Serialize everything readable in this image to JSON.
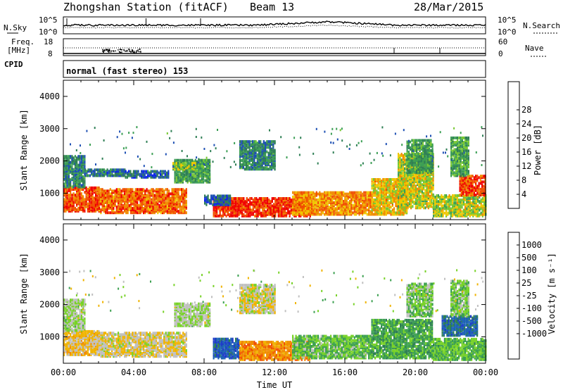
{
  "header": {
    "station": "Zhongshan Station (fitACF)",
    "beam": "Beam 13",
    "date": "28/Mar/2015"
  },
  "top_panels": {
    "nsky_label": "N.Sky",
    "nsky_ticks": [
      "10^5",
      "10^0"
    ],
    "nsearch_label": "N.Search",
    "nsearch_ticks": [
      "10^5",
      "10^0"
    ],
    "freq_label_line1": "Freq.",
    "freq_label_line2": "[MHz]",
    "freq_ticks": [
      "18",
      "8"
    ],
    "nave_label": "Nave",
    "nave_ticks": [
      "60",
      "0"
    ],
    "cpid_label": "CPID",
    "cpid_text": "normal (fast stereo) 153"
  },
  "colors": {
    "power": [
      "#0a1ef0",
      "#1e50b4",
      "#2f7f55",
      "#3c9f55",
      "#78c832",
      "#f0c800",
      "#f08c00",
      "#f05000",
      "#f00000"
    ],
    "velocity": [
      "#1e3cc8",
      "#1e64b4",
      "#2e7f55",
      "#3ca050",
      "#78d228",
      "#c0c0c0",
      "#f0b400",
      "#f08c00",
      "#f05000",
      "#f00000"
    ]
  },
  "chart_data": [
    {
      "type": "heatmap",
      "name": "power",
      "ylabel": "Slant Range [km]",
      "ylim": [
        180,
        4500
      ],
      "yticks": [
        "1000",
        "2000",
        "3000",
        "4000"
      ],
      "xlim": [
        "00:00",
        "24:00"
      ],
      "colorbar_label": "Power [dB]",
      "colorbar_ticks": [
        "4",
        "8",
        "12",
        "16",
        "20",
        "24",
        "28"
      ],
      "colorbar_range": [
        0,
        30
      ],
      "regions": [
        {
          "t0": 0.0,
          "t1": 2.0,
          "r0": 400,
          "r1": 1150,
          "v": 25
        },
        {
          "t0": 0.0,
          "t1": 1.2,
          "r0": 1150,
          "r1": 2100,
          "v": 9
        },
        {
          "t0": 1.2,
          "t1": 3.5,
          "r0": 1500,
          "r1": 1700,
          "v": 7
        },
        {
          "t0": 2.0,
          "t1": 7.0,
          "r0": 350,
          "r1": 1100,
          "v": 24
        },
        {
          "t0": 3.5,
          "t1": 6.0,
          "r0": 1450,
          "r1": 1650,
          "v": 6
        },
        {
          "t0": 6.3,
          "t1": 8.3,
          "r0": 1300,
          "r1": 2000,
          "v": 11
        },
        {
          "t0": 6.2,
          "t1": 7.5,
          "r0": 1700,
          "r1": 1900,
          "v": 15
        },
        {
          "t0": 8.5,
          "t1": 14.0,
          "r0": 250,
          "r1": 800,
          "v": 27
        },
        {
          "t0": 8.0,
          "t1": 9.5,
          "r0": 600,
          "r1": 900,
          "v": 6
        },
        {
          "t0": 10.0,
          "t1": 12.0,
          "r0": 1700,
          "r1": 2600,
          "v": 9
        },
        {
          "t0": 13.0,
          "t1": 17.5,
          "r0": 300,
          "r1": 1000,
          "v": 22
        },
        {
          "t0": 17.5,
          "t1": 19.5,
          "r0": 300,
          "r1": 1400,
          "v": 19
        },
        {
          "t0": 19.0,
          "t1": 21.0,
          "r0": 500,
          "r1": 2200,
          "v": 17
        },
        {
          "t0": 19.5,
          "t1": 21.0,
          "r0": 1600,
          "r1": 2600,
          "v": 11
        },
        {
          "t0": 21.0,
          "t1": 24.0,
          "r0": 250,
          "r1": 900,
          "v": 16
        },
        {
          "t0": 22.5,
          "t1": 24.0,
          "r0": 900,
          "r1": 1500,
          "v": 26
        },
        {
          "t0": 22.0,
          "t1": 23.0,
          "r0": 1500,
          "r1": 2700,
          "v": 12
        }
      ]
    },
    {
      "type": "heatmap",
      "name": "velocity",
      "ylabel": "Slant Range [km]",
      "ylim": [
        180,
        4500
      ],
      "yticks": [
        "1000",
        "2000",
        "3000",
        "4000"
      ],
      "xlabel": "Time UT",
      "xlim": [
        "00:00",
        "24:00"
      ],
      "xticks": [
        "00:00",
        "04:00",
        "08:00",
        "12:00",
        "16:00",
        "20:00",
        "00:00"
      ],
      "colorbar_label": "Velocity [m s⁻¹]",
      "colorbar_ticks": [
        "1000",
        "500",
        "100",
        "25",
        "-25",
        "-100",
        "-500",
        "-1000"
      ],
      "colorbar_range": [
        -1200,
        1200
      ],
      "regions": [
        {
          "t0": 0.0,
          "t1": 2.0,
          "r0": 400,
          "r1": 1150,
          "v": -300
        },
        {
          "t0": 0.0,
          "t1": 1.2,
          "r0": 1150,
          "r1": 2100,
          "v": 0
        },
        {
          "t0": 2.0,
          "t1": 7.0,
          "r0": 350,
          "r1": 1100,
          "v": -200
        },
        {
          "t0": 6.3,
          "t1": 8.3,
          "r0": 1300,
          "r1": 2000,
          "v": 0
        },
        {
          "t0": 8.5,
          "t1": 10.0,
          "r0": 300,
          "r1": 900,
          "v": 900
        },
        {
          "t0": 10.0,
          "t1": 14.0,
          "r0": 250,
          "r1": 800,
          "v": -600
        },
        {
          "t0": 10.0,
          "t1": 12.0,
          "r0": 1700,
          "r1": 2600,
          "v": -150
        },
        {
          "t0": 13.0,
          "t1": 17.5,
          "r0": 300,
          "r1": 1000,
          "v": 200
        },
        {
          "t0": 17.5,
          "t1": 21.0,
          "r0": 300,
          "r1": 1500,
          "v": 350
        },
        {
          "t0": 19.5,
          "t1": 21.0,
          "r0": 1600,
          "r1": 2600,
          "v": 150
        },
        {
          "t0": 21.0,
          "t1": 24.0,
          "r0": 250,
          "r1": 900,
          "v": 250
        },
        {
          "t0": 21.5,
          "t1": 23.5,
          "r0": 1000,
          "r1": 1600,
          "v": 800
        },
        {
          "t0": 22.0,
          "t1": 23.0,
          "r0": 1600,
          "r1": 2700,
          "v": 120
        }
      ]
    }
  ]
}
